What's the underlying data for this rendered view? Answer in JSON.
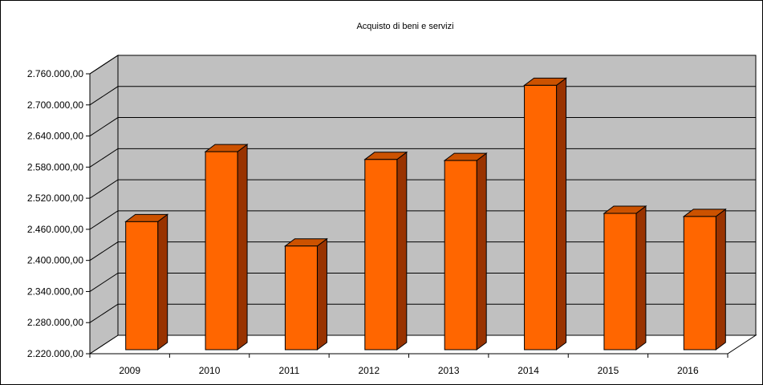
{
  "chart_data": {
    "type": "bar",
    "title": "Acquisto di beni e servizi",
    "xlabel": "",
    "ylabel": "",
    "categories": [
      "2009",
      "2010",
      "2011",
      "2012",
      "2013",
      "2014",
      "2015",
      "2016"
    ],
    "values": [
      2467000,
      2602000,
      2420000,
      2587000,
      2585000,
      2730000,
      2483000,
      2477000
    ],
    "ylim": [
      2220000,
      2760000
    ],
    "yticks": [
      "2.220.000,00",
      "2.280.000,00",
      "2.340.000,00",
      "2.400.000,00",
      "2.460.000,00",
      "2.520.000,00",
      "2.580.000,00",
      "2.640.000,00",
      "2.700.000,00",
      "2.760.000,00"
    ],
    "grid": true,
    "legend": "none",
    "colors": {
      "bar_front": "#ff6600",
      "bar_side": "#993300",
      "bar_top": "#cc5200",
      "wall": "#c0c0c0",
      "floor": "#ffffff",
      "grid": "#000000"
    }
  }
}
